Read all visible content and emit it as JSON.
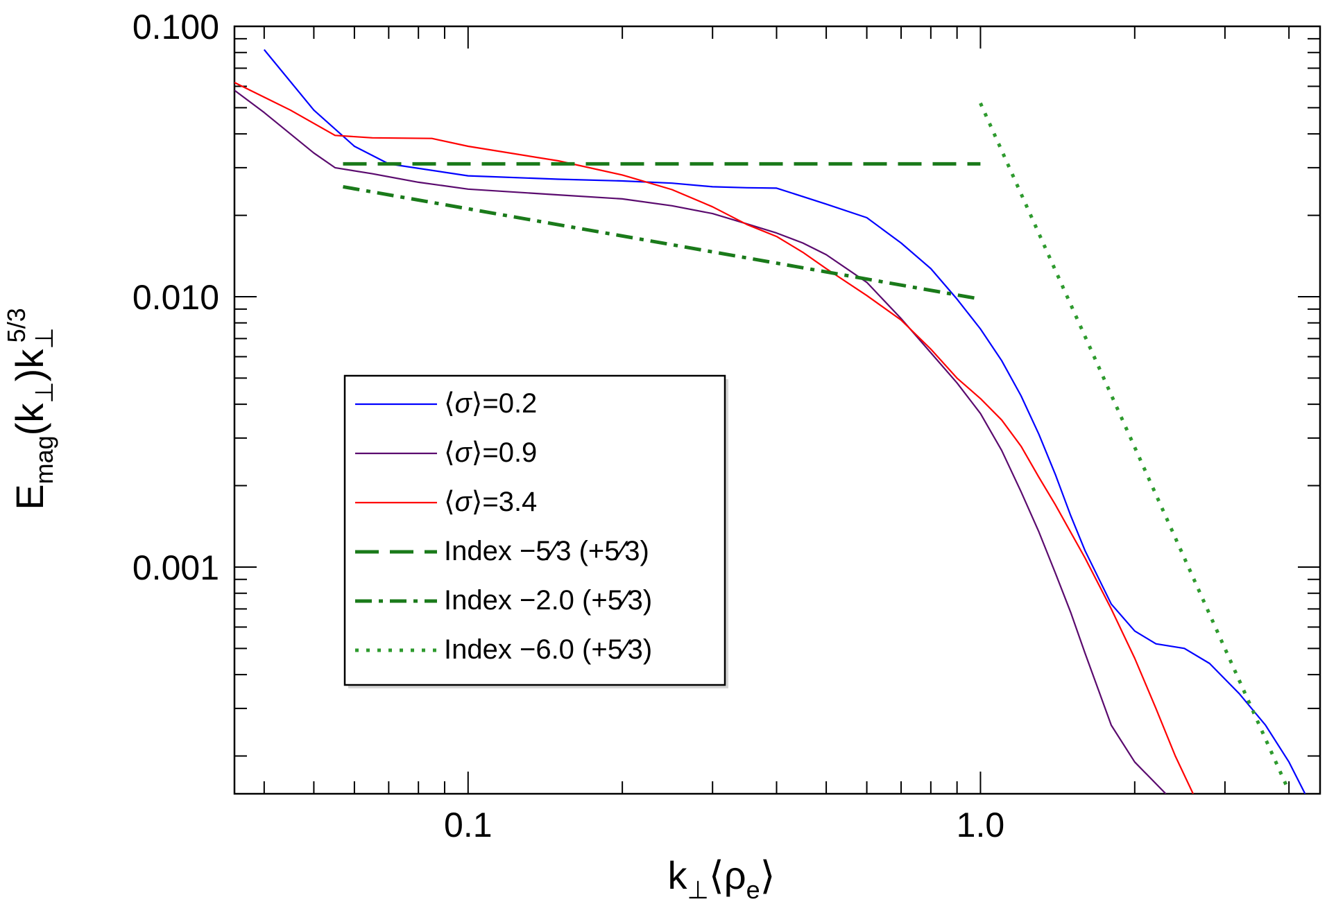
{
  "chart_data": {
    "type": "line",
    "xscale": "log",
    "yscale": "log",
    "xlim": [
      0.035,
      4.6
    ],
    "ylim": [
      0.000145,
      0.1
    ],
    "x_ticks": [
      {
        "value": 0.1,
        "label": "0.1"
      },
      {
        "value": 1.0,
        "label": "1.0"
      }
    ],
    "y_ticks": [
      {
        "value": 0.1,
        "label": "0.100"
      },
      {
        "value": 0.01,
        "label": "0.010"
      },
      {
        "value": 0.001,
        "label": "0.001"
      }
    ],
    "xlabel": {
      "main": "k",
      "sub": "⊥",
      "rest": "⟨ρ",
      "sub2": "e",
      "end": "⟩"
    },
    "ylabel": {
      "main": "E",
      "sub": "mag",
      "mid": "(k",
      "sub2": "⊥",
      "end": ")k",
      "sub3": "⊥",
      "sup": "5/3"
    },
    "series": [
      {
        "name": "⟨σ⟩=0.2",
        "color": "#0000ff",
        "style": "solid",
        "points": [
          [
            0.04,
            0.082
          ],
          [
            0.05,
            0.049
          ],
          [
            0.06,
            0.036
          ],
          [
            0.07,
            0.031
          ],
          [
            0.1,
            0.028
          ],
          [
            0.15,
            0.0272
          ],
          [
            0.2,
            0.0268
          ],
          [
            0.25,
            0.0263
          ],
          [
            0.3,
            0.0255
          ],
          [
            0.35,
            0.0253
          ],
          [
            0.4,
            0.0252
          ],
          [
            0.5,
            0.022
          ],
          [
            0.6,
            0.0196
          ],
          [
            0.7,
            0.0158
          ],
          [
            0.8,
            0.0127
          ],
          [
            0.9,
            0.0098
          ],
          [
            1.0,
            0.0076
          ],
          [
            1.1,
            0.0058
          ],
          [
            1.2,
            0.0043
          ],
          [
            1.3,
            0.0031
          ],
          [
            1.4,
            0.0022
          ],
          [
            1.5,
            0.00155
          ],
          [
            1.6,
            0.00115
          ],
          [
            1.8,
            0.00073
          ],
          [
            2.0,
            0.00058
          ],
          [
            2.2,
            0.00052
          ],
          [
            2.5,
            0.0005
          ],
          [
            2.8,
            0.00044
          ],
          [
            3.2,
            0.00034
          ],
          [
            3.6,
            0.00026
          ],
          [
            4.0,
            0.00019
          ],
          [
            4.3,
            0.000145
          ]
        ]
      },
      {
        "name": "⟨σ⟩=0.9",
        "color": "#5a0a6e",
        "style": "solid",
        "points": [
          [
            0.035,
            0.058
          ],
          [
            0.04,
            0.048
          ],
          [
            0.05,
            0.034
          ],
          [
            0.055,
            0.03
          ],
          [
            0.065,
            0.0285
          ],
          [
            0.08,
            0.0265
          ],
          [
            0.1,
            0.025
          ],
          [
            0.15,
            0.0238
          ],
          [
            0.2,
            0.023
          ],
          [
            0.25,
            0.0217
          ],
          [
            0.3,
            0.0203
          ],
          [
            0.35,
            0.0186
          ],
          [
            0.4,
            0.0172
          ],
          [
            0.45,
            0.0158
          ],
          [
            0.5,
            0.0143
          ],
          [
            0.6,
            0.0113
          ],
          [
            0.7,
            0.0083
          ],
          [
            0.8,
            0.0062
          ],
          [
            0.9,
            0.0048
          ],
          [
            1.0,
            0.0037
          ],
          [
            1.1,
            0.0027
          ],
          [
            1.2,
            0.0019
          ],
          [
            1.3,
            0.00135
          ],
          [
            1.4,
            0.00095
          ],
          [
            1.5,
            0.00068
          ],
          [
            1.6,
            0.00048
          ],
          [
            1.7,
            0.00035
          ],
          [
            1.8,
            0.00026
          ],
          [
            2.0,
            0.00019
          ],
          [
            2.3,
            0.000145
          ]
        ]
      },
      {
        "name": "⟨σ⟩=3.4",
        "color": "#ff0000",
        "style": "solid",
        "points": [
          [
            0.035,
            0.062
          ],
          [
            0.045,
            0.049
          ],
          [
            0.055,
            0.0395
          ],
          [
            0.065,
            0.0387
          ],
          [
            0.085,
            0.0385
          ],
          [
            0.1,
            0.036
          ],
          [
            0.15,
            0.0318
          ],
          [
            0.2,
            0.0282
          ],
          [
            0.25,
            0.0249
          ],
          [
            0.3,
            0.0215
          ],
          [
            0.35,
            0.0185
          ],
          [
            0.4,
            0.0167
          ],
          [
            0.45,
            0.0146
          ],
          [
            0.5,
            0.0127
          ],
          [
            0.6,
            0.0101
          ],
          [
            0.7,
            0.0082
          ],
          [
            0.8,
            0.0064
          ],
          [
            0.9,
            0.005
          ],
          [
            1.0,
            0.0042
          ],
          [
            1.1,
            0.0035
          ],
          [
            1.2,
            0.0028
          ],
          [
            1.3,
            0.00215
          ],
          [
            1.4,
            0.0017
          ],
          [
            1.6,
            0.00108
          ],
          [
            1.8,
            0.0007
          ],
          [
            2.0,
            0.00046
          ],
          [
            2.2,
            0.0003
          ],
          [
            2.4,
            0.0002
          ],
          [
            2.6,
            0.000145
          ]
        ]
      },
      {
        "name": "Index −5⁄3 (+5⁄3)",
        "color": "#1a7a1a",
        "style": "dashed",
        "points": [
          [
            0.057,
            0.031
          ],
          [
            1.0,
            0.031
          ]
        ]
      },
      {
        "name": "Index −2.0 (+5⁄3)",
        "color": "#1a7a1a",
        "style": "dashdot",
        "points": [
          [
            0.057,
            0.0255
          ],
          [
            1.0,
            0.0098
          ]
        ]
      },
      {
        "name": "Index −6.0 (+5⁄3)",
        "color": "#2e9a2e",
        "style": "dotted",
        "points": [
          [
            1.0,
            0.052
          ],
          [
            4.0,
            0.000148
          ]
        ]
      }
    ],
    "legend_position": "center-left",
    "legend": [
      {
        "label_pre": "⟨",
        "label_sym": "σ",
        "label_post": "⟩=0.2",
        "ref": 0
      },
      {
        "label_pre": "⟨",
        "label_sym": "σ",
        "label_post": "⟩=0.9",
        "ref": 1
      },
      {
        "label_pre": "⟨",
        "label_sym": "σ",
        "label_post": "⟩=3.4",
        "ref": 2
      },
      {
        "label_pre": "Index −5⁄3 (+5⁄3)",
        "ref": 3
      },
      {
        "label_pre": "Index −2.0 (+5⁄3)",
        "ref": 4
      },
      {
        "label_pre": "Index −6.0 (+5⁄3)",
        "ref": 5
      }
    ]
  }
}
